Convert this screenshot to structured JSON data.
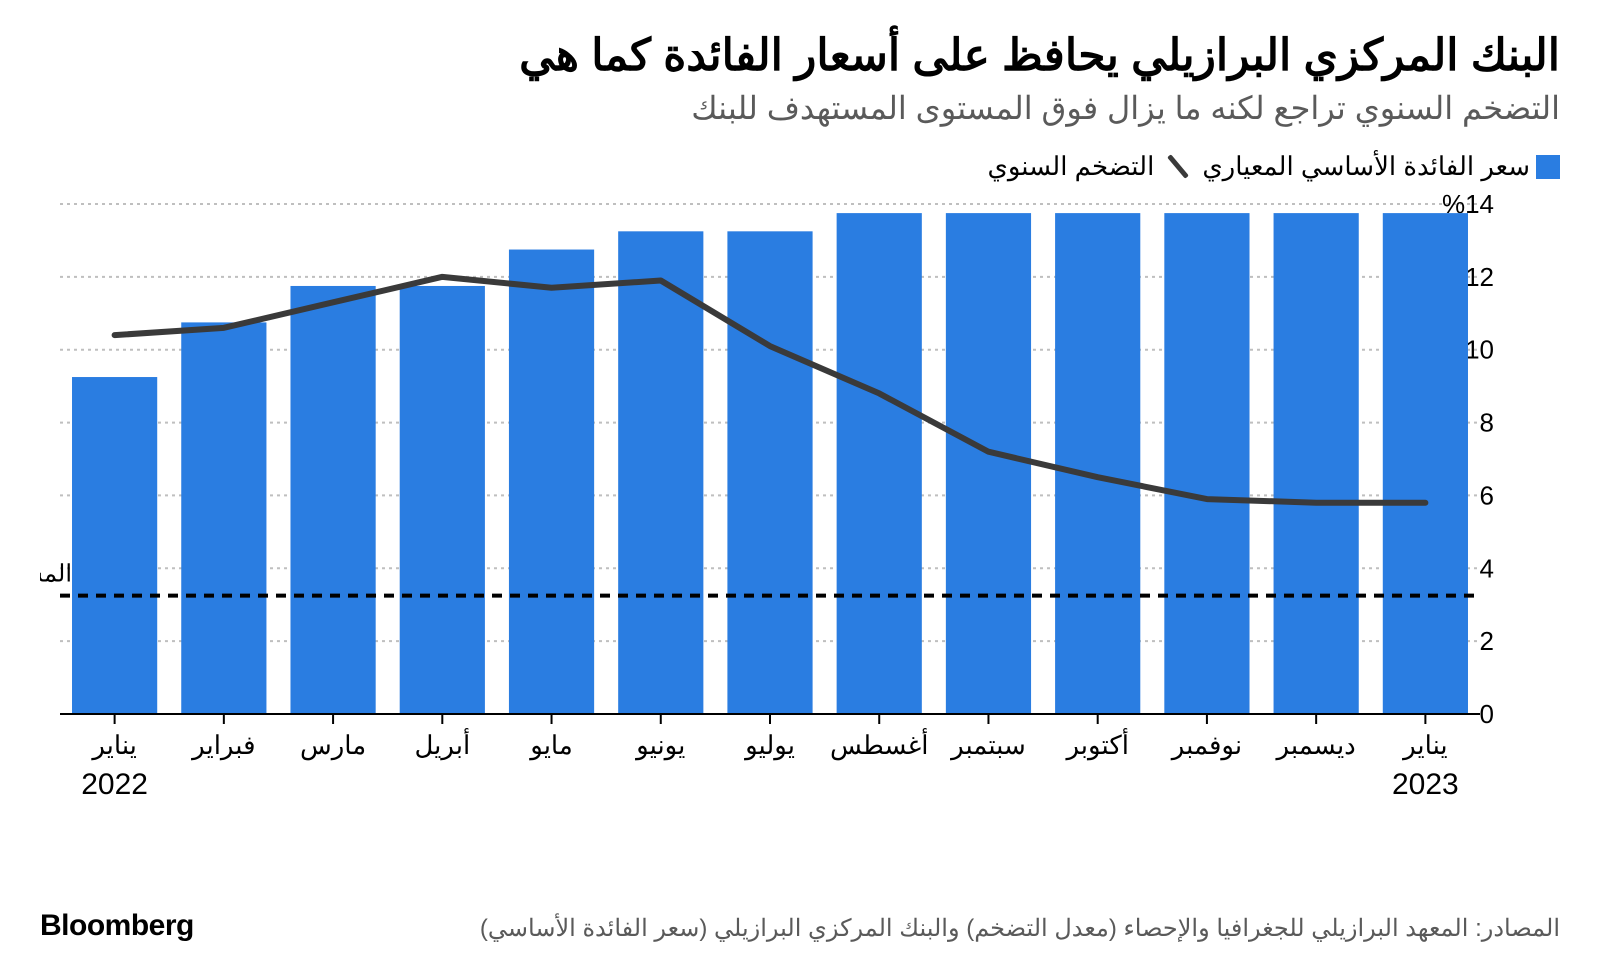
{
  "title": "البنك المركزي البرازيلي يحافظ على أسعار الفائدة كما هي",
  "subtitle": "التضخم السنوي تراجع لكنه ما يزال فوق المستوى المستهدف للبنك",
  "legend": {
    "bar_label": "سعر الفائدة الأساسي المعياري",
    "line_label": "التضخم السنوي"
  },
  "source": "المصادر: المعهد البرازيلي للجغرافيا والإحصاء (معدل التضخم) والبنك المركزي البرازيلي (سعر الفائدة الأساسي)",
  "brand": "Bloomberg",
  "chart": {
    "type": "bar+line",
    "categories": [
      "يناير",
      "فبراير",
      "مارس",
      "أبريل",
      "مايو",
      "يونيو",
      "يوليو",
      "أغسطس",
      "سبتمبر",
      "أكتوبر",
      "نوفمبر",
      "ديسمبر",
      "يناير"
    ],
    "year_start": "2022",
    "year_end": "2023",
    "bar_values": [
      9.25,
      10.75,
      11.75,
      11.75,
      12.75,
      13.25,
      13.25,
      13.75,
      13.75,
      13.75,
      13.75,
      13.75,
      13.75
    ],
    "line_values": [
      10.4,
      10.6,
      11.3,
      12.0,
      11.7,
      11.9,
      10.1,
      8.8,
      7.2,
      6.5,
      5.9,
      5.8,
      5.8
    ],
    "target_value": 3.25,
    "target_label": "المستوى المستهدف للتضخم",
    "ylim": [
      0,
      14
    ],
    "ytick_step": 2,
    "ytick_format_top": "%14",
    "bar_color": "#2a7de1",
    "line_color": "#3a3a3a",
    "line_width": 6,
    "target_color": "#000000",
    "target_dash": "10,8",
    "grid_color": "#bfbfbf",
    "grid_dash": "3,4",
    "axis_color": "#000000",
    "background_color": "#ffffff",
    "tick_fontsize": 26,
    "xlabel_fontsize": 26,
    "year_fontsize": 30,
    "target_label_fontsize": 24,
    "bar_width_ratio": 0.78
  }
}
